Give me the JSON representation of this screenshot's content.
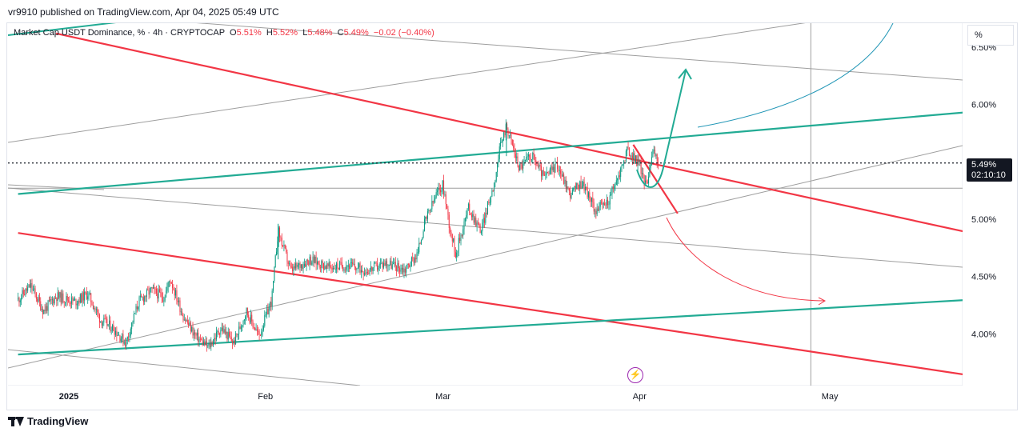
{
  "header": {
    "publisher": "vr9910 published on TradingView.com, Apr 04, 2025 05:49 UTC"
  },
  "legend": {
    "symbol": "Market Cap USDT Dominance, % · 4h · CRYPTOCAP",
    "open_label": "O",
    "open": "5.51%",
    "high_label": "H",
    "high": "5.52%",
    "low_label": "L",
    "low": "5.48%",
    "close_label": "C",
    "close": "5.49%",
    "change": "−0.02 (−0.40%)"
  },
  "unit_label": "%",
  "last_price": {
    "value": "5.49%",
    "countdown": "02:10:10"
  },
  "footer": {
    "brand": "TradingView"
  },
  "icons": {
    "event": "lightning-icon",
    "brand": "tradingview-logo"
  },
  "colors": {
    "up": "#089981",
    "down": "#f23645",
    "resistance": "#f23645",
    "support": "#22ab94",
    "gray_lines": "#9e9e9e",
    "projection_up": "#22ab94",
    "projection_down": "#f23645",
    "cyan_curve": "#2196b6"
  },
  "chart_data": {
    "type": "candlestick",
    "x_axis": {
      "ticks": [
        "2025",
        "Feb",
        "Mar",
        "Apr",
        "May"
      ],
      "tick_dates": [
        "2025-01-01",
        "2025-02-01",
        "2025-03-01",
        "2025-04-01",
        "2025-05-01"
      ]
    },
    "y_axis": {
      "ticks": [
        "6.50%",
        "6.00%",
        "5.50%",
        "5.00%",
        "4.50%",
        "4.00%"
      ],
      "tick_values": [
        6.5,
        6.0,
        5.5,
        5.0,
        4.5,
        4.0
      ],
      "range": [
        3.68,
        6.55
      ]
    },
    "last_price": 5.49,
    "close_path": [
      [
        "2024-12-24",
        4.3
      ],
      [
        "2024-12-26",
        4.42
      ],
      [
        "2024-12-28",
        4.2
      ],
      [
        "2024-12-30",
        4.33
      ],
      [
        "2025-01-02",
        4.28
      ],
      [
        "2025-01-04",
        4.35
      ],
      [
        "2025-01-06",
        4.12
      ],
      [
        "2025-01-08",
        4.05
      ],
      [
        "2025-01-10",
        3.92
      ],
      [
        "2025-01-12",
        4.28
      ],
      [
        "2025-01-14",
        4.38
      ],
      [
        "2025-01-16",
        4.32
      ],
      [
        "2025-01-17",
        4.48
      ],
      [
        "2025-01-19",
        4.16
      ],
      [
        "2025-01-21",
        3.98
      ],
      [
        "2025-01-23",
        3.88
      ],
      [
        "2025-01-25",
        4.05
      ],
      [
        "2025-01-27",
        3.92
      ],
      [
        "2025-01-29",
        4.2
      ],
      [
        "2025-01-31",
        3.98
      ],
      [
        "2025-02-02",
        4.3
      ],
      [
        "2025-02-03",
        4.9
      ],
      [
        "2025-02-05",
        4.55
      ],
      [
        "2025-02-08",
        4.65
      ],
      [
        "2025-02-11",
        4.58
      ],
      [
        "2025-02-14",
        4.6
      ],
      [
        "2025-02-17",
        4.55
      ],
      [
        "2025-02-20",
        4.62
      ],
      [
        "2025-02-23",
        4.56
      ],
      [
        "2025-02-25",
        4.7
      ],
      [
        "2025-02-26",
        4.95
      ],
      [
        "2025-02-28",
        5.22
      ],
      [
        "2025-03-01",
        5.3
      ],
      [
        "2025-03-02",
        4.95
      ],
      [
        "2025-03-03",
        4.7
      ],
      [
        "2025-03-05",
        5.1
      ],
      [
        "2025-03-07",
        4.9
      ],
      [
        "2025-03-09",
        5.3
      ],
      [
        "2025-03-10",
        5.62
      ],
      [
        "2025-03-11",
        5.82
      ],
      [
        "2025-03-13",
        5.45
      ],
      [
        "2025-03-15",
        5.56
      ],
      [
        "2025-03-17",
        5.36
      ],
      [
        "2025-03-19",
        5.48
      ],
      [
        "2025-03-21",
        5.22
      ],
      [
        "2025-03-23",
        5.32
      ],
      [
        "2025-03-25",
        5.08
      ],
      [
        "2025-03-27",
        5.15
      ],
      [
        "2025-03-29",
        5.42
      ],
      [
        "2025-03-30",
        5.6
      ],
      [
        "2025-04-01",
        5.48
      ],
      [
        "2025-04-02",
        5.28
      ],
      [
        "2025-04-03",
        5.6
      ],
      [
        "2025-04-04",
        5.49
      ]
    ],
    "trend_lines": [
      {
        "name": "resistance-upper",
        "color": "red",
        "from": [
          "2024-12-30",
          6.62
        ],
        "to": [
          "2025-05-24",
          4.87
        ]
      },
      {
        "name": "resistance-lower",
        "color": "red",
        "from": [
          "2024-12-24",
          4.88
        ],
        "to": [
          "2025-05-24",
          3.63
        ]
      },
      {
        "name": "resistance-steep",
        "color": "red",
        "from": [
          "2025-03-31",
          5.65
        ],
        "to": [
          "2025-04-07",
          5.05
        ]
      },
      {
        "name": "channel-upper",
        "color": "green",
        "from": [
          "2024-12-24",
          5.22
        ],
        "to": [
          "2025-05-24",
          5.94
        ]
      },
      {
        "name": "channel-lower",
        "color": "green",
        "from": [
          "2024-12-24",
          3.82
        ],
        "to": [
          "2025-05-24",
          4.3
        ]
      }
    ],
    "horizontal_lines": [
      {
        "y": 5.27,
        "color": "gray"
      }
    ],
    "vertical_lines": [
      {
        "x": "2025-04-28",
        "color": "gray"
      }
    ],
    "annotations": [
      {
        "type": "arrow-up-projection",
        "color": "green"
      },
      {
        "type": "arrow-down-projection",
        "color": "red"
      },
      {
        "type": "curve-projection",
        "color": "cyan"
      }
    ]
  }
}
